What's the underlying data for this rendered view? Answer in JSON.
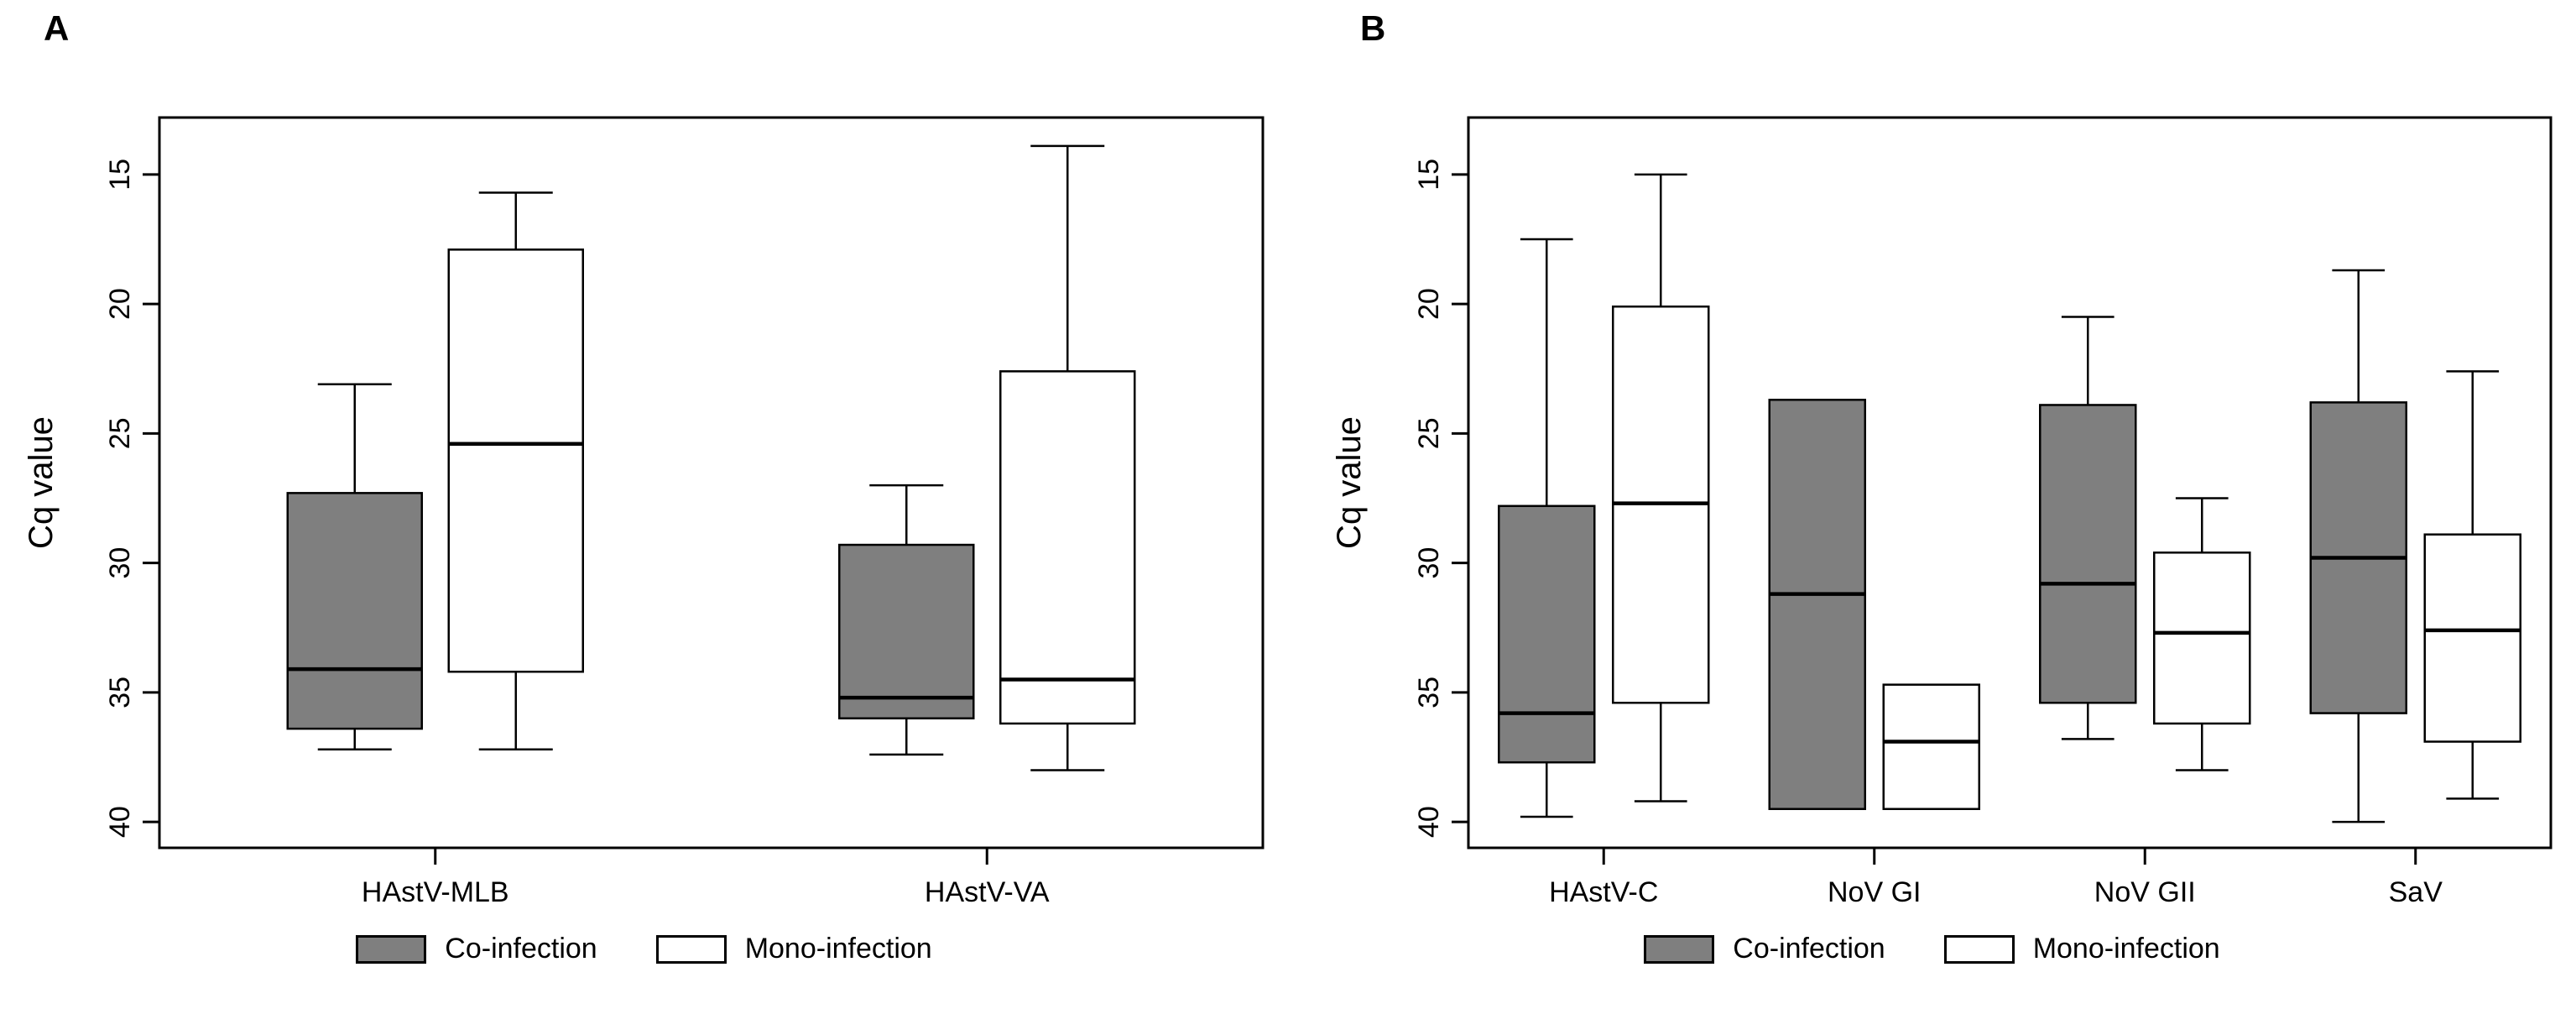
{
  "colors": {
    "co_infection_fill": "#7f7f7f",
    "mono_infection_fill": "#ffffff",
    "stroke": "#000000",
    "background": "#ffffff"
  },
  "chart_data": [
    {
      "type": "box",
      "panel_label": "A",
      "ylabel": "Cq value",
      "y_axis_inverted": true,
      "y_range_visible": [
        12.8,
        41.0
      ],
      "yticks": [
        15,
        20,
        25,
        30,
        35,
        40
      ],
      "categories": [
        "HAstV-MLB",
        "HAstV-VA"
      ],
      "legend_position": "bottom",
      "grid": false,
      "series": [
        {
          "name": "Co-infection",
          "fill": "#7f7f7f",
          "boxes": [
            {
              "category": "HAstV-MLB",
              "min": 23.1,
              "q1": 27.3,
              "median": 34.1,
              "q3": 36.4,
              "max": 37.2
            },
            {
              "category": "HAstV-VA",
              "min": 27.0,
              "q1": 29.3,
              "median": 35.2,
              "q3": 36.0,
              "max": 37.4
            }
          ]
        },
        {
          "name": "Mono-infection",
          "fill": "#ffffff",
          "boxes": [
            {
              "category": "HAstV-MLB",
              "min": 15.7,
              "q1": 17.9,
              "median": 25.4,
              "q3": 34.2,
              "max": 37.2
            },
            {
              "category": "HAstV-VA",
              "min": 13.9,
              "q1": 22.6,
              "median": 34.5,
              "q3": 36.2,
              "max": 38.0
            }
          ]
        }
      ]
    },
    {
      "type": "box",
      "panel_label": "B",
      "ylabel": "Cq value",
      "y_axis_inverted": true,
      "y_range_visible": [
        12.8,
        41.0
      ],
      "yticks": [
        15,
        20,
        25,
        30,
        35,
        40
      ],
      "categories": [
        "HAstV-C",
        "NoV GI",
        "NoV GII",
        "SaV"
      ],
      "legend_position": "bottom",
      "grid": false,
      "series": [
        {
          "name": "Co-infection",
          "fill": "#7f7f7f",
          "boxes": [
            {
              "category": "HAstV-C",
              "min": 17.5,
              "q1": 27.8,
              "median": 35.8,
              "q3": 37.7,
              "max": 39.8
            },
            {
              "category": "NoV GI",
              "min": 23.7,
              "q1": 23.7,
              "median": 31.2,
              "q3": 39.5,
              "max": 39.5
            },
            {
              "category": "NoV GII",
              "min": 20.5,
              "q1": 23.9,
              "median": 30.8,
              "q3": 35.4,
              "max": 36.8
            },
            {
              "category": "SaV",
              "min": 18.7,
              "q1": 23.8,
              "median": 29.8,
              "q3": 35.8,
              "max": 40.0
            }
          ]
        },
        {
          "name": "Mono-infection",
          "fill": "#ffffff",
          "boxes": [
            {
              "category": "HAstV-C",
              "min": 15.0,
              "q1": 20.1,
              "median": 27.7,
              "q3": 35.4,
              "max": 39.2
            },
            {
              "category": "NoV GI",
              "min": 34.7,
              "q1": 34.7,
              "median": 36.9,
              "q3": 39.5,
              "max": 39.5
            },
            {
              "category": "NoV GII",
              "min": 27.5,
              "q1": 29.6,
              "median": 32.7,
              "q3": 36.2,
              "max": 38.0
            },
            {
              "category": "SaV",
              "min": 22.6,
              "q1": 28.9,
              "median": 32.6,
              "q3": 36.9,
              "max": 39.1
            }
          ]
        }
      ]
    }
  ]
}
